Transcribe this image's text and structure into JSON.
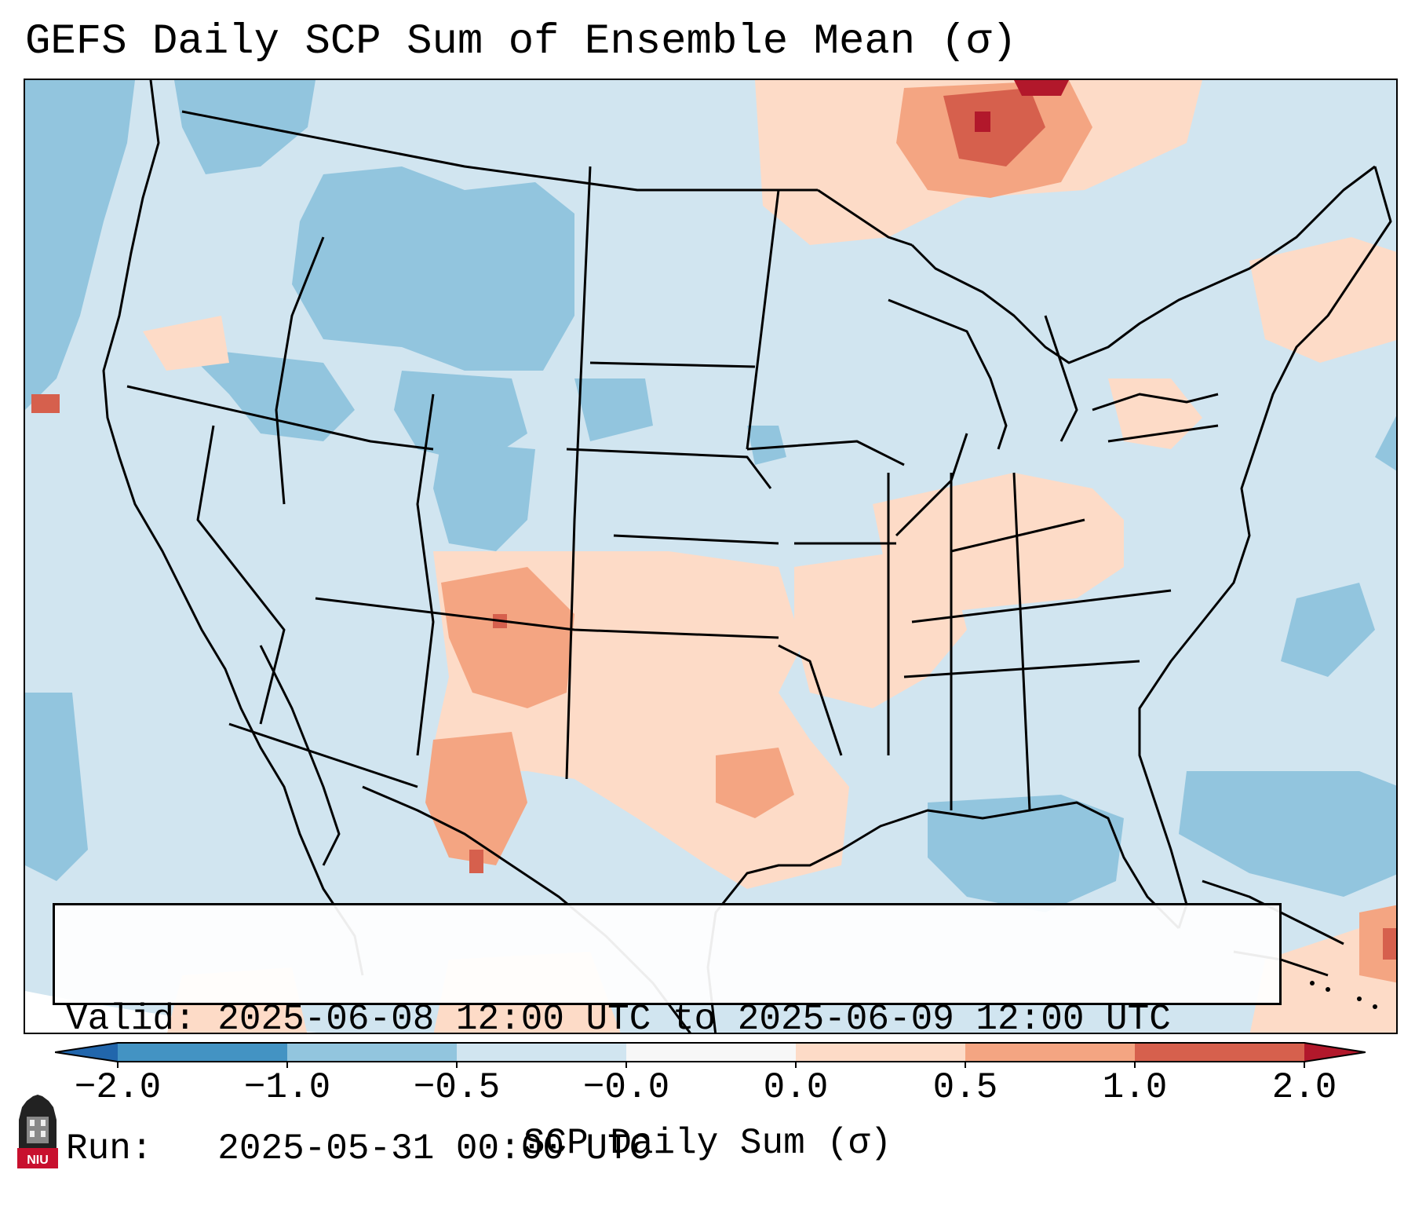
{
  "title": "GEFS Daily SCP Sum of Ensemble Mean (σ)",
  "info": {
    "valid_label": "Valid:",
    "valid_value": "2025-06-08 12:00 UTC to 2025-06-09 12:00 UTC",
    "run_label": "Run:",
    "run_value": "2025-05-31 00:00 UTC"
  },
  "colorbar": {
    "label": "SCP Daily Sum (σ)",
    "ticks": [
      "−2.0",
      "−1.0",
      "−0.5",
      "−0.0",
      "0.0",
      "0.5",
      "1.0",
      "2.0"
    ],
    "bin_colors": [
      "#4393c3",
      "#92c5de",
      "#d1e5f0",
      "#f7f7f7",
      "#fddbc7",
      "#f4a582",
      "#d6604d"
    ],
    "under_color": "#2166ac",
    "over_color": "#b2182b"
  },
  "map": {
    "region": "Continental United States",
    "background_color": "#d1e5f0"
  },
  "logo": {
    "text": "NIU",
    "color": "#c8102e"
  }
}
